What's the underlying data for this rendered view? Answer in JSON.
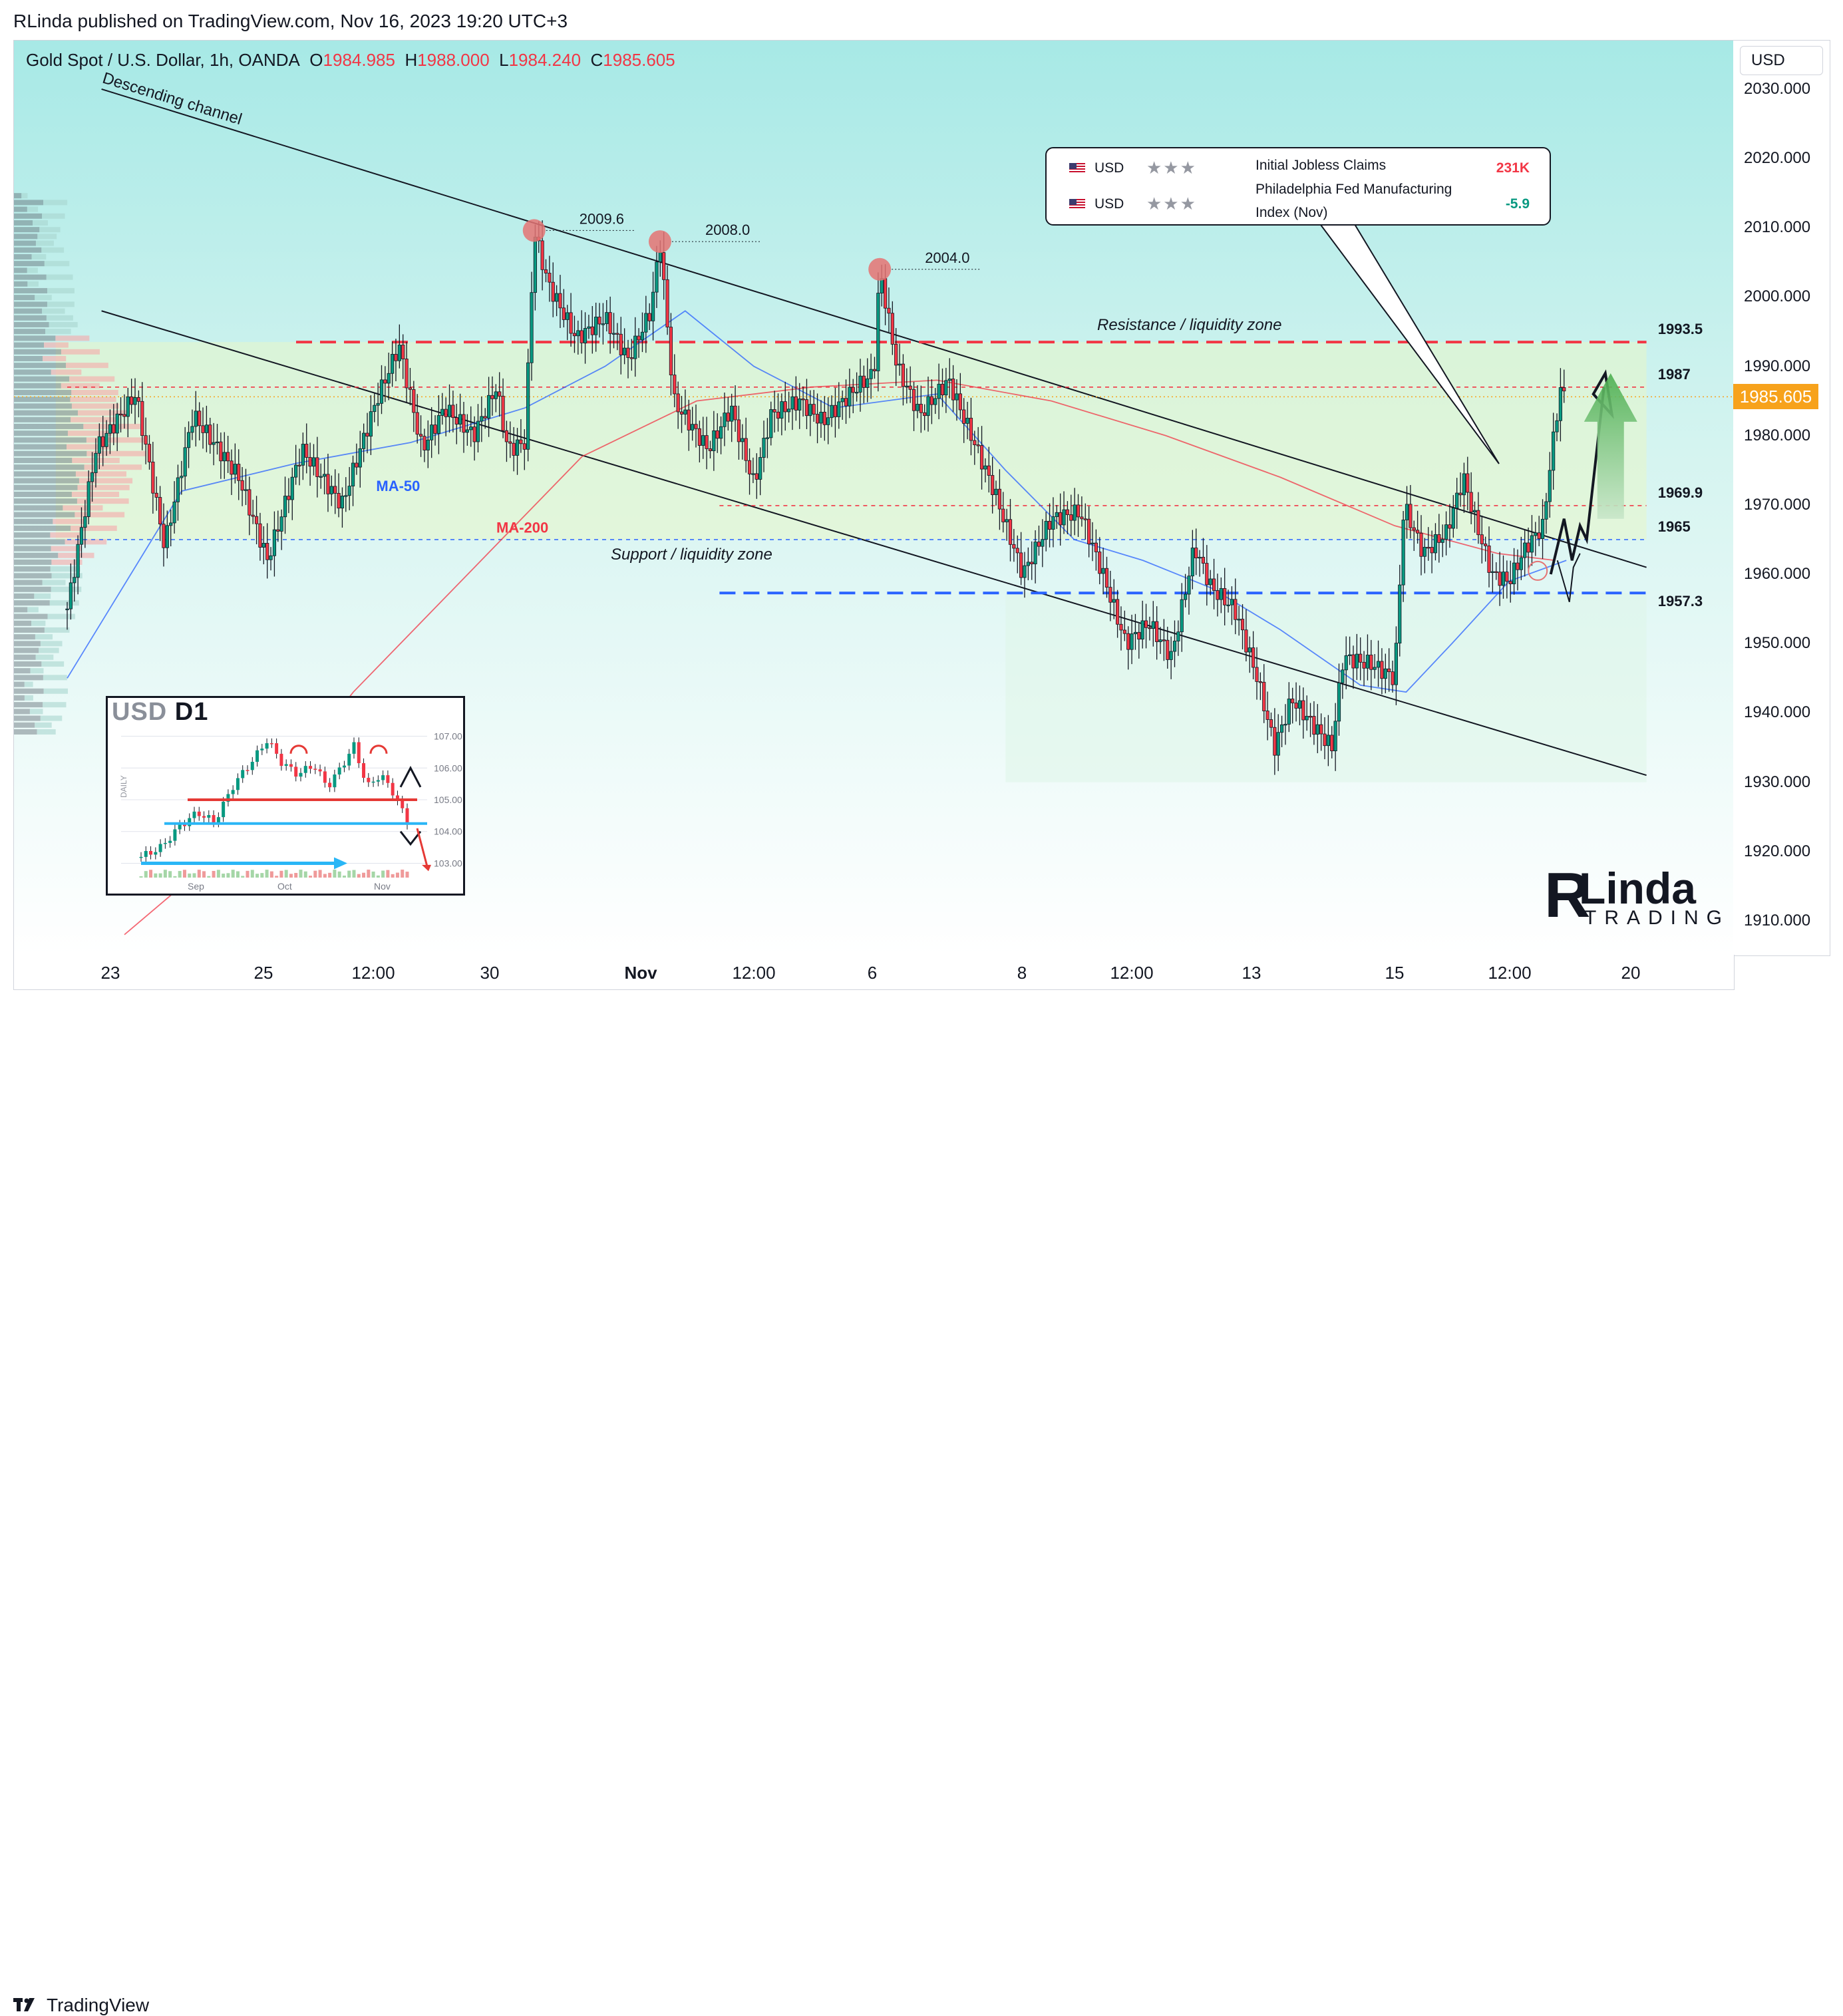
{
  "header": {
    "publisher": "RLinda published on TradingView.com, Nov 16, 2023 19:20 UTC+3"
  },
  "legend": {
    "symbol": "Gold Spot / U.S. Dollar, 1h, OANDA",
    "o_label": "O",
    "o_value": "1984.985",
    "h_label": "H",
    "h_value": "1988.000",
    "l_label": "L",
    "l_value": "1984.240",
    "c_label": "C",
    "c_value": "1985.605"
  },
  "price_axis": {
    "currency": "USD",
    "ticks": [
      "2030.000",
      "2020.000",
      "2010.000",
      "2000.000",
      "1990.000",
      "1980.000",
      "1970.000",
      "1960.000",
      "1950.000",
      "1940.000",
      "1930.000",
      "1920.000",
      "1910.000"
    ],
    "last_price": "1985.605"
  },
  "time_axis": {
    "labels": [
      {
        "text": "23",
        "bold": false
      },
      {
        "text": "25",
        "bold": false
      },
      {
        "text": "12:00",
        "bold": false
      },
      {
        "text": "30",
        "bold": false
      },
      {
        "text": "Nov",
        "bold": true
      },
      {
        "text": "12:00",
        "bold": false
      },
      {
        "text": "6",
        "bold": false
      },
      {
        "text": "8",
        "bold": false
      },
      {
        "text": "12:00",
        "bold": false
      },
      {
        "text": "13",
        "bold": false
      },
      {
        "text": "15",
        "bold": false
      },
      {
        "text": "12:00",
        "bold": false
      },
      {
        "text": "20",
        "bold": false
      }
    ]
  },
  "events": [
    {
      "currency": "USD",
      "stars": "★★★",
      "name": "Initial Jobless Claims",
      "value": "231K",
      "value_color": "#f23645"
    },
    {
      "currency": "USD",
      "stars": "★★★",
      "name": "Philadelphia Fed Manufacturing Index (Nov)",
      "value": "-5.9",
      "value_color": "#089981"
    }
  ],
  "annotations": {
    "channel": "Descending channel",
    "resistance_zone": "Resistance / liquidity zone",
    "support_zone": "Support / liquidity zone",
    "ma50": "MA-50",
    "ma200": "MA-200",
    "peak1": "2009.6",
    "peak2": "2008.0",
    "peak3": "2004.0",
    "level_1993": "1993.5",
    "level_1987": "1987",
    "level_1969": "1969.9",
    "level_1965": "1965",
    "level_1957": "1957.3"
  },
  "inset": {
    "title_usd": "USD",
    "title_d": "D1",
    "ticks": [
      "107.00",
      "106.00",
      "105.00",
      "104.00",
      "103.00"
    ],
    "months": [
      "Sep",
      "Oct",
      "Nov"
    ],
    "side_label": "DAILY"
  },
  "brand": {
    "main": "Linda",
    "sub": "TRADING",
    "initial": "R"
  },
  "footer": {
    "logo": "TradingView"
  },
  "colors": {
    "bull": "#089981",
    "bear": "#f23645",
    "ma50": "#2962ff",
    "ma200": "#f23645",
    "resistance": "#f23645",
    "support": "#2962ff",
    "last": "#f7a21b"
  },
  "chart_data": {
    "type": "candlestick",
    "title": "Gold Spot / U.S. Dollar, 1h, OANDA",
    "ylim": [
      1905,
      2037
    ],
    "x_categories": [
      "23",
      "25",
      "12:00",
      "30",
      "Nov",
      "12:00",
      "6",
      "8",
      "12:00",
      "13",
      "15",
      "12:00",
      "20"
    ],
    "price_path": [
      [
        0,
        1955
      ],
      [
        25,
        1978
      ],
      [
        60,
        1986
      ],
      [
        85,
        1964
      ],
      [
        110,
        1983
      ],
      [
        150,
        1974
      ],
      [
        175,
        1962
      ],
      [
        205,
        1978
      ],
      [
        240,
        1970
      ],
      [
        270,
        1985
      ],
      [
        290,
        1993
      ],
      [
        310,
        1978
      ],
      [
        330,
        1984
      ],
      [
        355,
        1980
      ],
      [
        375,
        1987
      ],
      [
        385,
        1978
      ],
      [
        400,
        1979
      ],
      [
        408,
        2009.6
      ],
      [
        420,
        2002
      ],
      [
        445,
        1994
      ],
      [
        470,
        1997
      ],
      [
        490,
        1991
      ],
      [
        510,
        1998
      ],
      [
        518,
        2008
      ],
      [
        530,
        1985
      ],
      [
        560,
        1978
      ],
      [
        580,
        1984
      ],
      [
        600,
        1973
      ],
      [
        615,
        1983
      ],
      [
        640,
        1985
      ],
      [
        660,
        1982
      ],
      [
        690,
        1987
      ],
      [
        705,
        1989
      ],
      [
        710,
        2004
      ],
      [
        725,
        1990
      ],
      [
        745,
        1983
      ],
      [
        770,
        1988
      ],
      [
        790,
        1980
      ],
      [
        810,
        1972
      ],
      [
        835,
        1960
      ],
      [
        860,
        1968
      ],
      [
        885,
        1969
      ],
      [
        905,
        1960
      ],
      [
        925,
        1950
      ],
      [
        945,
        1953
      ],
      [
        965,
        1948
      ],
      [
        985,
        1964
      ],
      [
        1000,
        1958
      ],
      [
        1020,
        1955
      ],
      [
        1040,
        1945
      ],
      [
        1055,
        1935
      ],
      [
        1070,
        1942
      ],
      [
        1090,
        1938
      ],
      [
        1105,
        1935
      ],
      [
        1115,
        1948
      ],
      [
        1140,
        1947
      ],
      [
        1160,
        1945
      ],
      [
        1168,
        1970
      ],
      [
        1185,
        1963
      ],
      [
        1205,
        1966
      ],
      [
        1220,
        1974
      ],
      [
        1230,
        1968
      ],
      [
        1245,
        1960
      ],
      [
        1260,
        1959
      ],
      [
        1275,
        1964
      ],
      [
        1290,
        1967
      ],
      [
        1295,
        1975
      ],
      [
        1305,
        1987
      ],
      [
        1308,
        1985.605
      ]
    ],
    "candles_1h_sampled": 420,
    "moving_averages": [
      {
        "name": "MA-50",
        "points": [
          [
            0,
            1945
          ],
          [
            100,
            1972
          ],
          [
            200,
            1976
          ],
          [
            300,
            1979
          ],
          [
            400,
            1984
          ],
          [
            470,
            1990
          ],
          [
            540,
            1998
          ],
          [
            600,
            1990
          ],
          [
            670,
            1984
          ],
          [
            760,
            1986
          ],
          [
            820,
            1975
          ],
          [
            880,
            1965
          ],
          [
            940,
            1962
          ],
          [
            1000,
            1958
          ],
          [
            1060,
            1952
          ],
          [
            1130,
            1944
          ],
          [
            1170,
            1943
          ],
          [
            1210,
            1950
          ],
          [
            1260,
            1959
          ],
          [
            1310,
            1962
          ]
        ]
      },
      {
        "name": "MA-200",
        "points": [
          [
            50,
            1908
          ],
          [
            150,
            1922
          ],
          [
            250,
            1943
          ],
          [
            350,
            1960
          ],
          [
            450,
            1977
          ],
          [
            550,
            1985
          ],
          [
            650,
            1987
          ],
          [
            760,
            1988
          ],
          [
            860,
            1985
          ],
          [
            960,
            1980
          ],
          [
            1060,
            1974
          ],
          [
            1160,
            1967
          ],
          [
            1250,
            1963
          ],
          [
            1300,
            1962
          ]
        ]
      }
    ],
    "levels": [
      {
        "label": "1993.5",
        "price": 1993.5,
        "style": "dashed",
        "color": "#f23645"
      },
      {
        "label": "1987",
        "price": 1987,
        "style": "dotted",
        "color": "#f23645"
      },
      {
        "label": "1969.9",
        "price": 1969.9,
        "style": "dotted",
        "color": "#f23645"
      },
      {
        "label": "1965",
        "price": 1965,
        "style": "dotted",
        "color": "#2962ff"
      },
      {
        "label": "1957.3",
        "price": 1957.3,
        "style": "dashed",
        "color": "#2962ff"
      }
    ],
    "peaks": [
      {
        "label": "2009.6",
        "x": 408,
        "price": 2009.6
      },
      {
        "label": "2008.0",
        "x": 518,
        "price": 2008.0
      },
      {
        "label": "2004.0",
        "x": 710,
        "price": 2004.0
      }
    ],
    "channel": {
      "upper": [
        [
          30,
          2030
        ],
        [
          1380,
          1961
        ]
      ],
      "lower": [
        [
          30,
          1998
        ],
        [
          1380,
          1931
        ]
      ]
    },
    "last_price": 1985.605
  }
}
